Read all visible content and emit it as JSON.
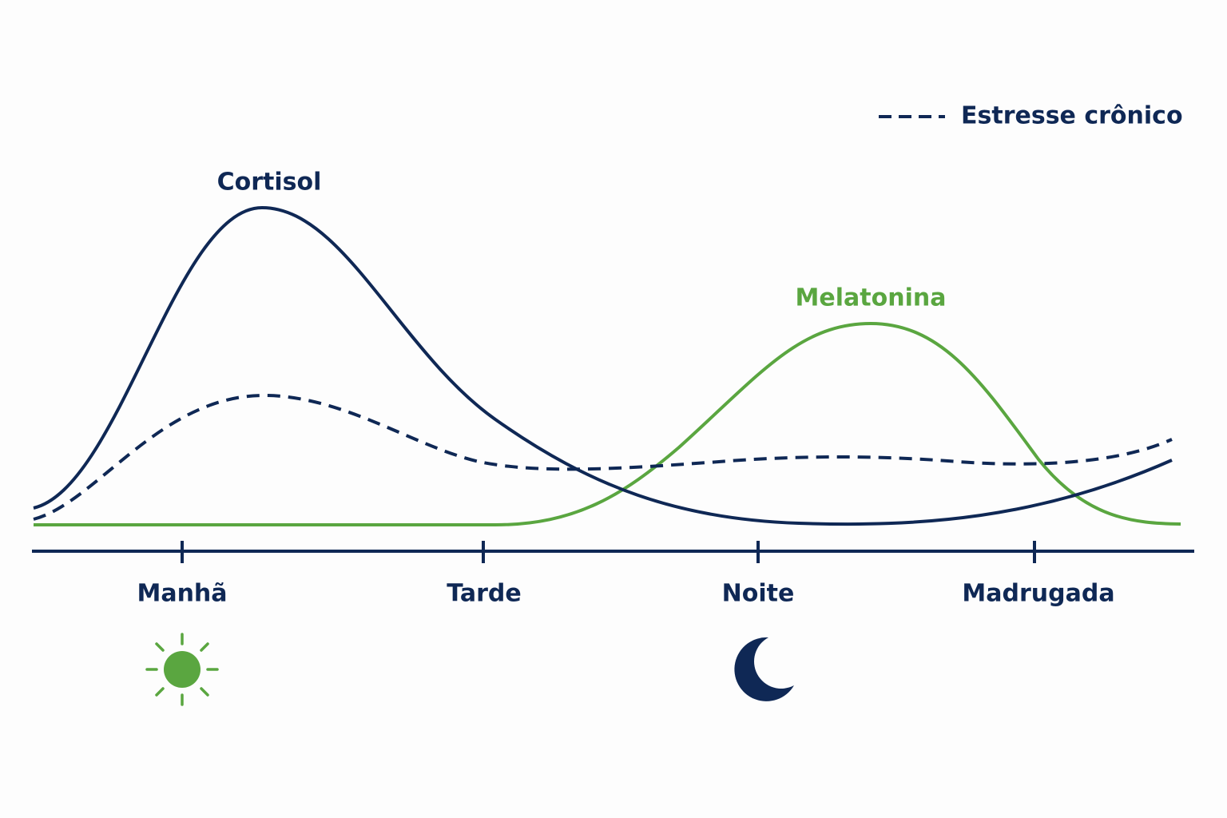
{
  "curves": {
    "cortisol": "Cortisol",
    "melatonin": "Melatonina"
  },
  "legend": {
    "label": "Estresse crônico"
  },
  "axis": {
    "labels": [
      "Manhã",
      "Tarde",
      "Noite",
      "Madrugada"
    ]
  }
}
